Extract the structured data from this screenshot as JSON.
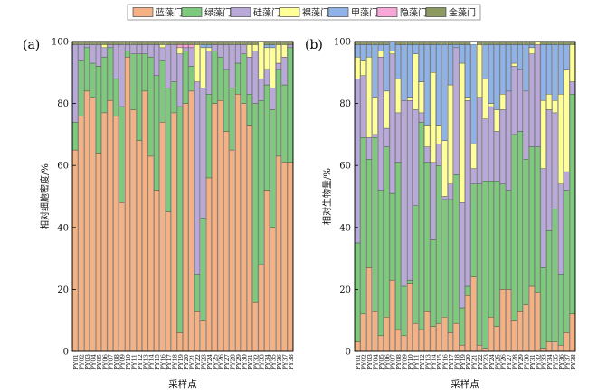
{
  "legend": [
    {
      "name": "蓝藻门",
      "color": "#f4b183"
    },
    {
      "name": "绿藻门",
      "color": "#7fc97f"
    },
    {
      "name": "硅藻门",
      "color": "#b8a9d9"
    },
    {
      "name": "裸藻门",
      "color": "#ffff99"
    },
    {
      "name": "甲藻门",
      "color": "#8fb3e6"
    },
    {
      "name": "隐藻门",
      "color": "#f7a8d8"
    },
    {
      "name": "金藻门",
      "color": "#8c9a60"
    }
  ],
  "chart_data": [
    {
      "type": "bar",
      "stacked": true,
      "panel_label": "(a)",
      "xlabel": "采样点",
      "ylabel": "相对细胞密度/%",
      "ylim": [
        0,
        100
      ],
      "yticks": [
        0,
        20,
        40,
        60,
        80,
        100
      ],
      "categories": [
        "PY01",
        "PY02",
        "PY03",
        "PY04",
        "PY05",
        "PY06",
        "PY07",
        "PY08",
        "PY09",
        "PY10",
        "PY11",
        "PY12",
        "PY13",
        "PY14",
        "PY15",
        "PY16",
        "PY17",
        "PY18",
        "PY19",
        "PY20",
        "PY21",
        "PY22",
        "PY23",
        "PY24",
        "PY25",
        "PY26",
        "PY27",
        "PY28",
        "PY29",
        "PY30",
        "PY31",
        "PY32",
        "PY33",
        "PY34",
        "PY35",
        "PY36",
        "PY37",
        "PY38"
      ],
      "series": [
        {
          "name": "蓝藻门",
          "values": [
            65,
            76,
            84,
            82,
            64,
            77,
            81,
            76,
            48,
            95,
            78,
            68,
            84,
            63,
            52,
            74,
            45,
            77,
            6,
            80,
            84,
            13,
            10,
            56,
            80,
            81,
            71,
            65,
            83,
            80,
            73,
            16,
            28,
            52,
            40,
            63,
            61,
            61
          ]
        },
        {
          "name": "绿藻门",
          "values": [
            9,
            18,
            14,
            11,
            28,
            18,
            17,
            12,
            31,
            2,
            18,
            28,
            12,
            32,
            37,
            20,
            40,
            10,
            73,
            17,
            8,
            12,
            33,
            27,
            17,
            14,
            20,
            20,
            10,
            16,
            10,
            64,
            53,
            34,
            38,
            28,
            25,
            37
          ]
        },
        {
          "name": "硅藻门",
          "values": [
            25,
            5,
            1,
            6,
            7,
            3,
            1,
            11,
            20,
            2,
            3,
            3,
            3,
            4,
            10,
            4,
            14,
            12,
            17,
            1,
            6,
            62,
            42,
            14,
            2,
            4,
            8,
            14,
            6,
            3,
            12,
            17,
            7,
            5,
            7,
            2,
            9,
            1
          ]
        },
        {
          "name": "裸藻门",
          "values": [
            0,
            0,
            0,
            0,
            0,
            1,
            0,
            0,
            0,
            0,
            0,
            0,
            0,
            0,
            0,
            1,
            0,
            0,
            2,
            0,
            0,
            12,
            13,
            1,
            0,
            0,
            0,
            0,
            0,
            0,
            4,
            2,
            12,
            7,
            13,
            6,
            4,
            0
          ]
        },
        {
          "name": "甲藻门",
          "values": [
            0,
            0,
            0,
            0,
            0,
            0,
            0,
            0,
            0,
            0,
            0,
            0,
            0,
            0,
            0,
            0,
            0,
            0,
            0,
            0,
            0,
            0,
            1,
            1,
            0,
            0,
            0,
            0,
            0,
            0,
            0,
            0,
            0,
            1,
            1,
            0,
            0,
            0
          ]
        },
        {
          "name": "隐藻门",
          "values": [
            0,
            0,
            0,
            0,
            0,
            0,
            0,
            0,
            0,
            0,
            0,
            0,
            0,
            0,
            0,
            0,
            0,
            0,
            1,
            1,
            1,
            0,
            0,
            0,
            0,
            0,
            0,
            0,
            0,
            0,
            0,
            0,
            0,
            0,
            0,
            0,
            0,
            0
          ]
        },
        {
          "name": "金藻门",
          "values": [
            1,
            1,
            1,
            1,
            1,
            1,
            1,
            1,
            1,
            1,
            1,
            1,
            1,
            1,
            1,
            1,
            1,
            1,
            1,
            1,
            1,
            1,
            1,
            1,
            1,
            1,
            1,
            1,
            1,
            1,
            1,
            1,
            0,
            1,
            1,
            1,
            1,
            1
          ]
        }
      ]
    },
    {
      "type": "bar",
      "stacked": true,
      "panel_label": "(b)",
      "xlabel": "采样点",
      "ylabel": "相对生物量/%",
      "ylim": [
        0,
        100
      ],
      "yticks": [
        0,
        20,
        40,
        60,
        80,
        100
      ],
      "categories": [
        "PY01",
        "PY02",
        "PY03",
        "PY04",
        "PY05",
        "PY06",
        "PY07",
        "PY08",
        "PY09",
        "PY10",
        "PY11",
        "PY12",
        "PY13",
        "PY14",
        "PY15",
        "PY16",
        "PY17",
        "PY18",
        "PY19",
        "PY20",
        "PY21",
        "PY22",
        "PY23",
        "PY24",
        "PY25",
        "PY26",
        "PY27",
        "PY28",
        "PY29",
        "PY30",
        "PY31",
        "PY32",
        "PY33",
        "PY34",
        "PY35",
        "PY36",
        "PY37",
        "PY38"
      ],
      "series": [
        {
          "name": "蓝藻门",
          "values": [
            3,
            12,
            27,
            13,
            5,
            11,
            23,
            7,
            5,
            22,
            9,
            7,
            13,
            8,
            9,
            11,
            6,
            9,
            2,
            18,
            24,
            2,
            1,
            11,
            8,
            20,
            20,
            10,
            13,
            15,
            21,
            19,
            1,
            3,
            3,
            2,
            6,
            12
          ]
        },
        {
          "name": "绿藻门",
          "values": [
            32,
            57,
            35,
            56,
            47,
            55,
            28,
            54,
            16,
            1,
            38,
            67,
            48,
            28,
            51,
            38,
            43,
            48,
            12,
            3,
            30,
            52,
            54,
            44,
            47,
            34,
            32,
            60,
            58,
            47,
            45,
            47,
            26,
            36,
            43,
            23,
            46,
            71
          ]
        },
        {
          "name": "硅藻门",
          "values": [
            53,
            20,
            7,
            1,
            43,
            6,
            45,
            16,
            60,
            58,
            31,
            3,
            5,
            25,
            7,
            1,
            5,
            41,
            34,
            60,
            5,
            28,
            20,
            24,
            16,
            24,
            32,
            22,
            20,
            22,
            30,
            33,
            32,
            39,
            31,
            29,
            6,
            4
          ]
        },
        {
          "name": "裸藻门",
          "values": [
            7,
            5,
            26,
            12,
            2,
            12,
            1,
            11,
            0,
            1,
            18,
            10,
            7,
            29,
            6,
            18,
            32,
            0,
            45,
            1,
            8,
            17,
            13,
            1,
            7,
            5,
            0,
            1,
            0,
            0,
            2,
            1,
            22,
            5,
            4,
            29,
            33,
            12
          ]
        },
        {
          "name": "甲藻门",
          "values": [
            4,
            5,
            4,
            17,
            2,
            15,
            3,
            11,
            18,
            17,
            3,
            12,
            26,
            9,
            26,
            31,
            13,
            1,
            6,
            17,
            32,
            0,
            11,
            19,
            21,
            16,
            15,
            6,
            8,
            15,
            1,
            0,
            18,
            16,
            18,
            16,
            8,
            0
          ]
        },
        {
          "name": "隐藻门",
          "values": [
            0,
            0,
            0,
            0,
            0,
            0,
            0,
            0,
            0,
            0,
            0,
            0,
            0,
            0,
            0,
            0,
            0,
            0,
            0,
            0,
            0,
            0,
            0,
            0,
            0,
            0,
            0,
            0,
            0,
            0,
            0,
            0,
            0,
            0,
            0,
            0,
            0,
            0
          ]
        },
        {
          "name": "金藻门",
          "values": [
            1,
            1,
            1,
            1,
            1,
            1,
            0,
            1,
            1,
            1,
            1,
            1,
            1,
            1,
            1,
            1,
            1,
            1,
            1,
            1,
            0,
            1,
            1,
            1,
            1,
            1,
            1,
            1,
            1,
            1,
            1,
            0,
            1,
            1,
            1,
            1,
            1,
            1
          ]
        }
      ]
    }
  ]
}
